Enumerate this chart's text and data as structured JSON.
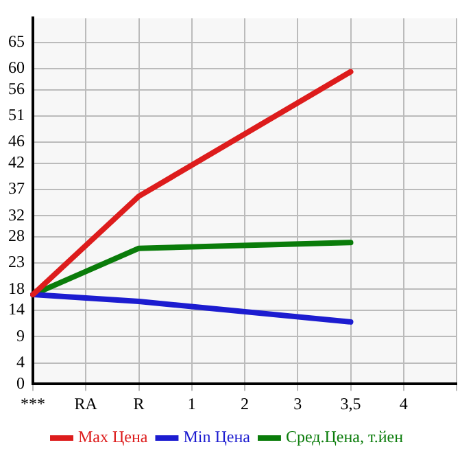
{
  "chart_data": {
    "type": "line",
    "categories": [
      "***",
      "RA",
      "R",
      "1",
      "2",
      "3",
      "3,5",
      "4",
      null
    ],
    "series": [
      {
        "name": "Max Цена",
        "color": "#dd1c1c",
        "values": [
          17.0,
          null,
          35.7,
          null,
          null,
          null,
          59.4,
          null,
          null
        ]
      },
      {
        "name": "Min Цена",
        "color": "#1c1cd0",
        "values": [
          17.0,
          null,
          15.7,
          null,
          null,
          null,
          11.8,
          null,
          null
        ]
      },
      {
        "name": "Сред.Цена, т.йен",
        "color": "#0a7c0a",
        "values": [
          17.0,
          null,
          25.8,
          null,
          null,
          null,
          26.9,
          null,
          null
        ]
      }
    ],
    "ylim": [
      0,
      69.6
    ],
    "yticks": [
      0,
      4,
      9,
      14,
      18,
      23,
      28,
      32,
      37,
      42,
      46,
      51,
      56,
      60,
      65
    ],
    "grid": true,
    "legend": "bottom",
    "marker": "none",
    "line_style": "solid"
  }
}
